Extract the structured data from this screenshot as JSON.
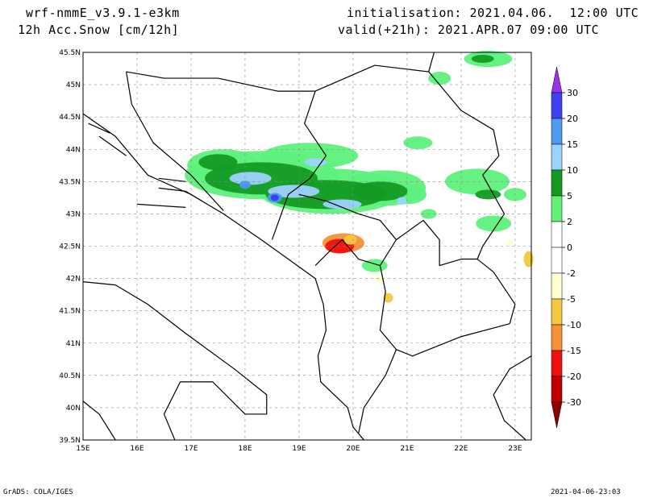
{
  "header": {
    "model": "wrf-nmmE_v3.9.1-e3km",
    "field": "12h Acc.Snow [cm/12h]",
    "init": "initialisation: 2021.04.06.  12:00 UTC",
    "valid": "valid(+21h): 2021.APR.07 09:00 UTC"
  },
  "footer": {
    "credit": "GrADS: COLA/IGES",
    "timestamp": "2021-04-06-23:03"
  },
  "map": {
    "lon_range": [
      15,
      23.3
    ],
    "lat_range": [
      39.5,
      45.5
    ],
    "lon_labels": [
      "15E",
      "16E",
      "17E",
      "18E",
      "19E",
      "20E",
      "21E",
      "22E",
      "23E"
    ],
    "lat_labels": [
      "39.5N",
      "40N",
      "40.5N",
      "41N",
      "41.5N",
      "42N",
      "42.5N",
      "43N",
      "43.5N",
      "44N",
      "44.5N",
      "45N",
      "45.5N"
    ],
    "grid_dashed": true,
    "colors": {
      "green_light": "#5ef07c",
      "green_dark": "#139a23",
      "blue_light": "#9dd2ff",
      "blue_mid": "#4a98f0",
      "blue_dark": "#3c3cf0",
      "yellow_pale": "#ffffd0",
      "yellow": "#f2c840",
      "orange": "#f59038",
      "red": "#f01010"
    }
  },
  "colorbar": {
    "labels": [
      "30",
      "20",
      "15",
      "10",
      "5",
      "2",
      "0",
      "-2",
      "-5",
      "-10",
      "-15",
      "-20",
      "-30"
    ],
    "colors": [
      "#4040f0",
      "#4e9af0",
      "#9dd2ff",
      "#129a22",
      "#62f079",
      "#ffffff",
      "#ffffff",
      "#ffffd0",
      "#f2c840",
      "#f59038",
      "#f01010",
      "#c00000"
    ],
    "top_arrow": "#9e30f0",
    "bottom_arrow": "#8c0000"
  }
}
